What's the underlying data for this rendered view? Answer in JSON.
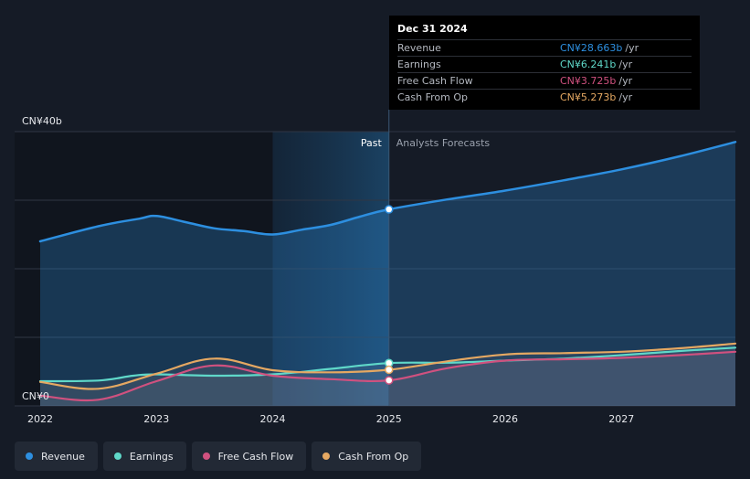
{
  "tooltip": {
    "date": "Dec 31 2024",
    "rows": [
      {
        "label": "Revenue",
        "value": "CN¥28.663b",
        "unit": "/yr",
        "color": "#2d8fe0"
      },
      {
        "label": "Earnings",
        "value": "CN¥6.241b",
        "unit": "/yr",
        "color": "#5fd8c9"
      },
      {
        "label": "Free Cash Flow",
        "value": "CN¥3.725b",
        "unit": "/yr",
        "color": "#d0517f"
      },
      {
        "label": "Cash From Op",
        "value": "CN¥5.273b",
        "unit": "/yr",
        "color": "#e5a862"
      }
    ]
  },
  "legend": [
    {
      "label": "Revenue",
      "color": "#2d8fe0"
    },
    {
      "label": "Earnings",
      "color": "#5fd8c9"
    },
    {
      "label": "Free Cash Flow",
      "color": "#d0517f"
    },
    {
      "label": "Cash From Op",
      "color": "#e5a862"
    }
  ],
  "chart_data": {
    "type": "line",
    "y_axis_labels": [
      {
        "value": 40,
        "text": "CN¥40b"
      },
      {
        "value": 0,
        "text": "CN¥0"
      }
    ],
    "ylim": [
      0,
      40
    ],
    "xlim": [
      2021.78,
      2027.98
    ],
    "x_ticks": [
      {
        "value": 2022,
        "label": "2022"
      },
      {
        "value": 2023,
        "label": "2023"
      },
      {
        "value": 2024,
        "label": "2024"
      },
      {
        "value": 2025,
        "label": "2025"
      },
      {
        "value": 2026,
        "label": "2026"
      },
      {
        "value": 2027,
        "label": "2027"
      }
    ],
    "grid": true,
    "past_label": "Past",
    "forecast_label": "Analysts Forecasts",
    "highlight_start": 2024.0,
    "divider_x": 2025.0,
    "series": [
      {
        "name": "Revenue",
        "color": "#2d8fe0",
        "x": [
          2022.0,
          2022.5,
          2022.85,
          2023.0,
          2023.25,
          2023.5,
          2023.75,
          2024.0,
          2024.25,
          2024.5,
          2024.75,
          2025.0,
          2025.5,
          2026.0,
          2026.5,
          2027.0,
          2027.5,
          2028.0
        ],
        "y": [
          24.0,
          26.2,
          27.3,
          27.7,
          26.8,
          25.9,
          25.5,
          25.0,
          25.7,
          26.4,
          27.6,
          28.663,
          30.1,
          31.4,
          32.9,
          34.5,
          36.4,
          38.5
        ]
      },
      {
        "name": "Earnings",
        "color": "#5fd8c9",
        "x": [
          2022.0,
          2022.5,
          2022.8,
          2023.0,
          2023.5,
          2024.0,
          2024.5,
          2025.0,
          2025.5,
          2026.0,
          2026.5,
          2027.0,
          2027.5,
          2028.0
        ],
        "y": [
          3.6,
          3.7,
          4.4,
          4.6,
          4.4,
          4.6,
          5.4,
          6.241,
          6.3,
          6.6,
          6.9,
          7.4,
          8.0,
          8.5
        ]
      },
      {
        "name": "Free Cash Flow",
        "color": "#d0517f",
        "x": [
          2022.0,
          2022.5,
          2023.0,
          2023.5,
          2024.0,
          2024.5,
          2025.0,
          2025.5,
          2026.0,
          2026.5,
          2027.0,
          2027.5,
          2028.0
        ],
        "y": [
          1.5,
          0.9,
          3.6,
          5.9,
          4.4,
          3.9,
          3.725,
          5.5,
          6.6,
          6.8,
          7.0,
          7.4,
          7.9
        ]
      },
      {
        "name": "Cash From Op",
        "color": "#e5a862",
        "x": [
          2022.0,
          2022.5,
          2023.0,
          2023.5,
          2024.0,
          2024.5,
          2025.0,
          2025.5,
          2026.0,
          2026.5,
          2027.0,
          2027.5,
          2028.0
        ],
        "y": [
          3.5,
          2.5,
          4.7,
          6.9,
          5.2,
          4.9,
          5.273,
          6.5,
          7.5,
          7.7,
          7.9,
          8.4,
          9.1
        ]
      }
    ]
  }
}
